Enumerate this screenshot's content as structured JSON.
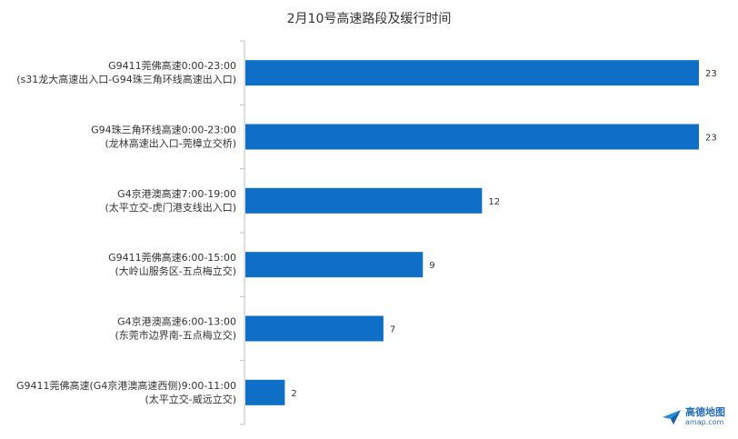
{
  "chart_data": {
    "type": "bar",
    "orientation": "horizontal",
    "title": "2月10号高速路段及缓行时间",
    "categories": [
      [
        "G9411莞佛高速0:00-23:00",
        "(s31龙大高速出入口-G94珠三角环线高速出入口)"
      ],
      [
        "G94珠三角环线高速0:00-23:00",
        "(龙林高速出入口-莞樟立交桥)"
      ],
      [
        "G4京港澳高速7:00-19:00",
        "(太平立交-虎门港支线出入口)"
      ],
      [
        "G9411莞佛高速6:00-15:00",
        "(大岭山服务区-五点梅立交)"
      ],
      [
        "G4京港澳高速6:00-13:00",
        "(东莞市边界南-五点梅立交)"
      ],
      [
        "G9411莞佛高速(G4京港澳高速西侧)9:00-11:00",
        "(太平立交-威远立交)"
      ]
    ],
    "values": [
      23,
      23,
      12,
      9,
      7,
      2
    ],
    "xlim": [
      0,
      23
    ],
    "bar_color": "#0f6fc6",
    "grid": false,
    "legend": "none"
  },
  "logo": {
    "name": "高德地图",
    "url": "amap.com"
  }
}
